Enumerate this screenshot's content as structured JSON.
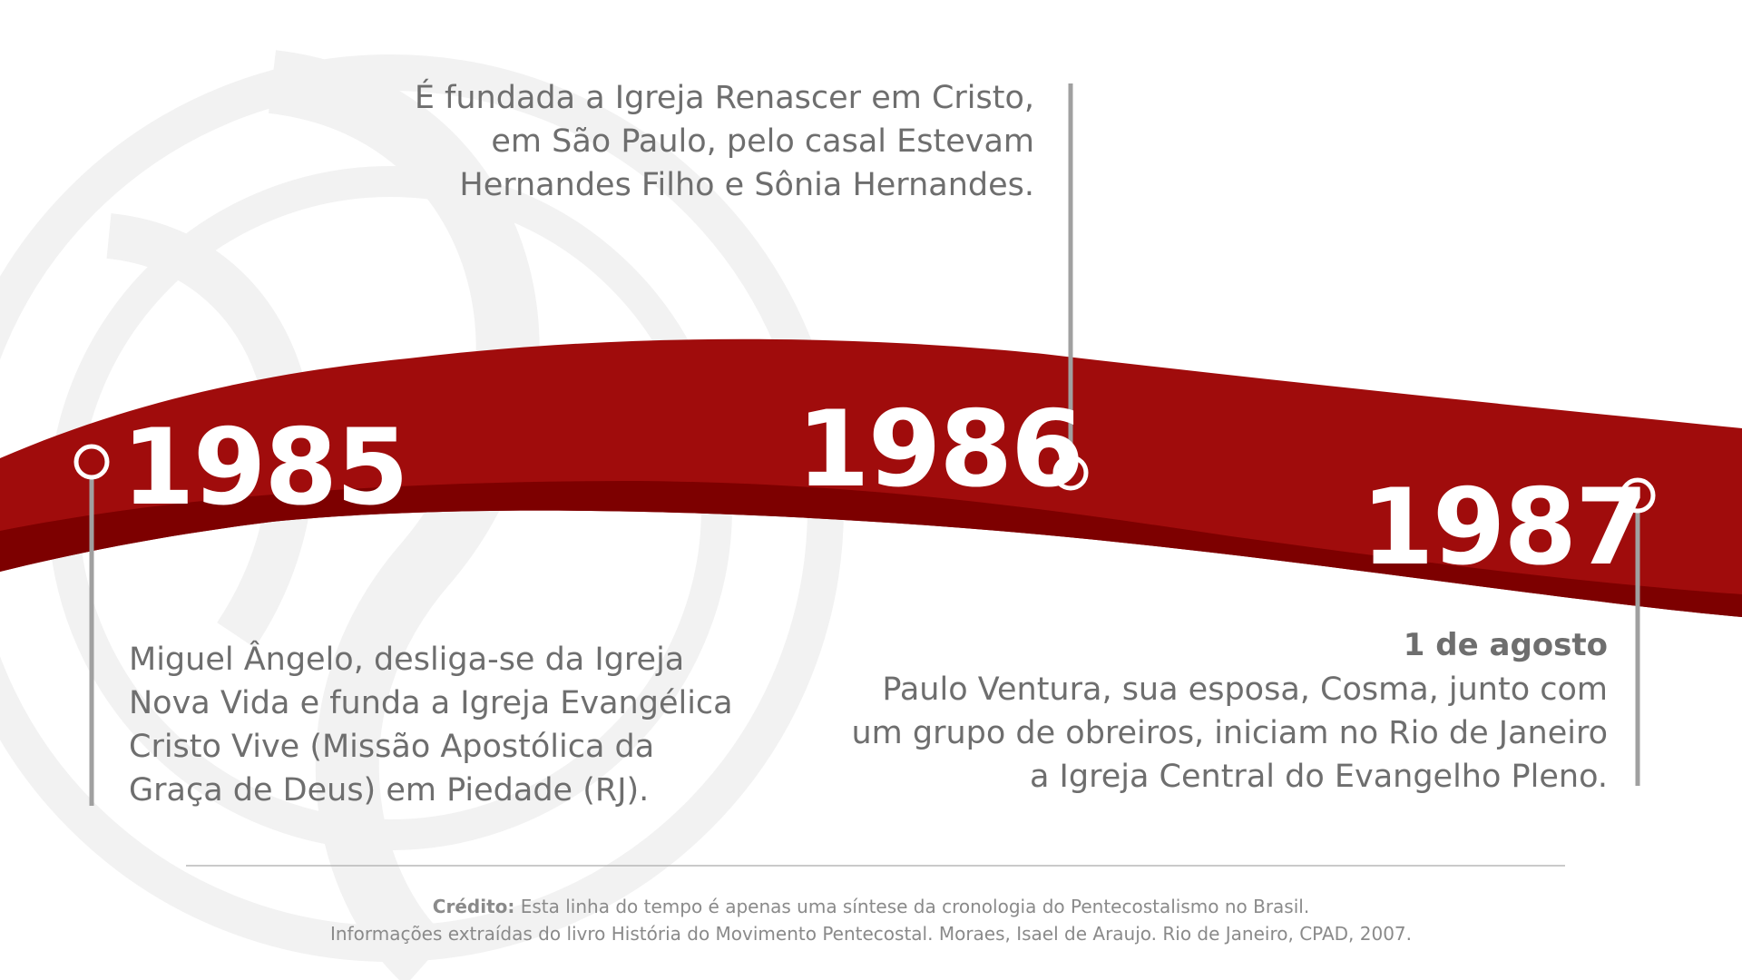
{
  "colors": {
    "band_main": "#a00c0c",
    "band_dark": "#7d0000",
    "text_gray": "#6e6e6e",
    "connector_gray": "#a0a0a0",
    "watermark": "#f2f2f2"
  },
  "events": [
    {
      "year": "1985",
      "description": "Miguel Ângelo, desliga-se da Igreja Nova Vida e funda a Igreja Evangélica Cristo Vive (Missão Apostólica da Graça de Deus) em Piedade (RJ).",
      "lines": [
        "Miguel Ângelo, desliga-se da Igreja",
        "Nova Vida e funda a Igreja Evangélica",
        "Cristo Vive (Missão Apostólica da",
        "Graça de Deus) em Piedade (RJ)."
      ]
    },
    {
      "year": "1986",
      "description": "É fundada a Igreja Renascer em Cristo, em São Paulo, pelo casal Estevam Hernandes Filho e Sônia Hernandes.",
      "lines": [
        "É fundada a Igreja Renascer em Cristo,",
        "em São Paulo, pelo casal Estevam",
        "Hernandes Filho e Sônia Hernandes."
      ]
    },
    {
      "year": "1987",
      "date": "1 de agosto",
      "description": "Paulo Ventura, sua esposa, Cosma, junto com um grupo de obreiros, iniciam no Rio de Janeiro a Igreja Central do Evangelho Pleno.",
      "lines": [
        "Paulo Ventura, sua esposa, Cosma, junto com",
        "um grupo de obreiros, iniciam no Rio de Janeiro",
        "a Igreja Central do Evangelho Pleno."
      ]
    }
  ],
  "credit": {
    "label": "Crédito:",
    "line1": "Esta linha do tempo é apenas uma síntese da cronologia do Pentecostalismo no Brasil.",
    "line2": "Informações extraídas do livro História do Movimento Pentecostal. Moraes, Isael de Araujo. Rio de Janeiro, CPAD, 2007."
  }
}
